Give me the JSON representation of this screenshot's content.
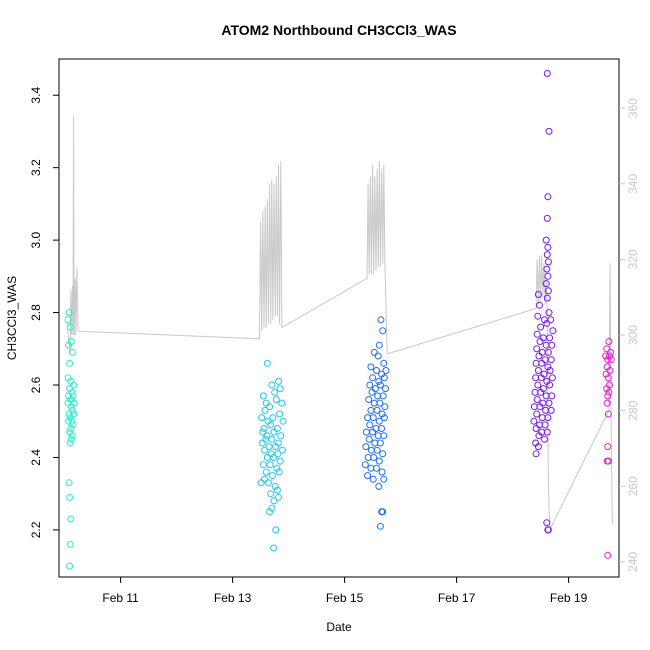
{
  "chart_data": {
    "type": "scatter",
    "title": "ATOM2 Northbound CH3CCl3_WAS",
    "xlabel": "Date",
    "ylabel": "CH3CCl3_WAS",
    "x_unit": "days in February",
    "xlim": [
      9.9,
      19.9
    ],
    "ylim": [
      2.07,
      3.5
    ],
    "y_ticks": [
      2.2,
      2.4,
      2.6,
      2.8,
      3.0,
      3.2,
      3.4
    ],
    "y_tick_labels": [
      "2.2",
      "2.4",
      "2.6",
      "2.8",
      "3.0",
      "3.2",
      "3.4"
    ],
    "x_ticks": [
      11,
      13,
      15,
      17,
      19
    ],
    "x_tick_labels": [
      "Feb 11",
      "Feb 13",
      "Feb 15",
      "Feb 17",
      "Feb 19"
    ],
    "right_axis": {
      "ylim": [
        236,
        373
      ],
      "ticks": [
        240,
        260,
        280,
        300,
        320,
        340,
        360
      ],
      "tick_labels": [
        "240",
        "260",
        "280",
        "300",
        "320",
        "340",
        "360"
      ],
      "color": "#c8c8c8"
    },
    "legend": "none",
    "grid": false,
    "series": [
      {
        "color": "#22f0c8",
        "points": [
          [
            10.08,
            2.8
          ],
          [
            10.06,
            2.78
          ],
          [
            10.1,
            2.76
          ],
          [
            10.12,
            2.72
          ],
          [
            10.07,
            2.71
          ],
          [
            10.14,
            2.69
          ],
          [
            10.09,
            2.66
          ],
          [
            10.06,
            2.62
          ],
          [
            10.11,
            2.61
          ],
          [
            10.16,
            2.6
          ],
          [
            10.09,
            2.59
          ],
          [
            10.13,
            2.58
          ],
          [
            10.07,
            2.57
          ],
          [
            10.15,
            2.57
          ],
          [
            10.11,
            2.56
          ],
          [
            10.17,
            2.55
          ],
          [
            10.06,
            2.55
          ],
          [
            10.12,
            2.54
          ],
          [
            10.14,
            2.53
          ],
          [
            10.08,
            2.52
          ],
          [
            10.16,
            2.52
          ],
          [
            10.1,
            2.51
          ],
          [
            10.13,
            2.5
          ],
          [
            10.07,
            2.5
          ],
          [
            10.15,
            2.49
          ],
          [
            10.11,
            2.48
          ],
          [
            10.09,
            2.47
          ],
          [
            10.14,
            2.46
          ],
          [
            10.12,
            2.45
          ],
          [
            10.1,
            2.44
          ],
          [
            10.08,
            2.33
          ],
          [
            10.09,
            2.29
          ],
          [
            10.11,
            2.23
          ],
          [
            10.1,
            2.16
          ],
          [
            10.09,
            2.1
          ]
        ]
      },
      {
        "color": "#1ec8f0",
        "points": [
          [
            13.62,
            2.66
          ],
          [
            13.55,
            2.57
          ],
          [
            13.7,
            2.6
          ],
          [
            13.82,
            2.61
          ],
          [
            13.6,
            2.55
          ],
          [
            13.75,
            2.58
          ],
          [
            13.85,
            2.59
          ],
          [
            13.58,
            2.53
          ],
          [
            13.66,
            2.54
          ],
          [
            13.78,
            2.56
          ],
          [
            13.88,
            2.55
          ],
          [
            13.52,
            2.51
          ],
          [
            13.63,
            2.5
          ],
          [
            13.72,
            2.51
          ],
          [
            13.84,
            2.52
          ],
          [
            13.56,
            2.48
          ],
          [
            13.68,
            2.49
          ],
          [
            13.8,
            2.48
          ],
          [
            13.9,
            2.5
          ],
          [
            13.54,
            2.47
          ],
          [
            13.61,
            2.46
          ],
          [
            13.74,
            2.47
          ],
          [
            13.86,
            2.46
          ],
          [
            13.59,
            2.45
          ],
          [
            13.7,
            2.45
          ],
          [
            13.82,
            2.44
          ],
          [
            13.53,
            2.44
          ],
          [
            13.65,
            2.43
          ],
          [
            13.77,
            2.43
          ],
          [
            13.89,
            2.42
          ],
          [
            13.57,
            2.42
          ],
          [
            13.69,
            2.41
          ],
          [
            13.81,
            2.41
          ],
          [
            13.62,
            2.4
          ],
          [
            13.73,
            2.4
          ],
          [
            13.85,
            2.39
          ],
          [
            13.55,
            2.38
          ],
          [
            13.67,
            2.38
          ],
          [
            13.79,
            2.37
          ],
          [
            13.6,
            2.36
          ],
          [
            13.71,
            2.35
          ],
          [
            13.83,
            2.36
          ],
          [
            13.57,
            2.34
          ],
          [
            13.51,
            2.33
          ],
          [
            13.64,
            2.33
          ],
          [
            13.76,
            2.32
          ],
          [
            13.8,
            2.31
          ],
          [
            13.68,
            2.3
          ],
          [
            13.82,
            2.29
          ],
          [
            13.74,
            2.28
          ],
          [
            13.7,
            2.26
          ],
          [
            13.66,
            2.25
          ],
          [
            13.77,
            2.2
          ],
          [
            13.73,
            2.15
          ]
        ]
      },
      {
        "color": "#1e6ef0",
        "points": [
          [
            15.65,
            2.78
          ],
          [
            15.68,
            2.75
          ],
          [
            15.62,
            2.71
          ],
          [
            15.53,
            2.69
          ],
          [
            15.6,
            2.68
          ],
          [
            15.7,
            2.66
          ],
          [
            15.47,
            2.65
          ],
          [
            15.57,
            2.64
          ],
          [
            15.66,
            2.63
          ],
          [
            15.74,
            2.64
          ],
          [
            15.5,
            2.62
          ],
          [
            15.61,
            2.61
          ],
          [
            15.71,
            2.62
          ],
          [
            15.45,
            2.6
          ],
          [
            15.55,
            2.59
          ],
          [
            15.64,
            2.6
          ],
          [
            15.73,
            2.59
          ],
          [
            15.49,
            2.58
          ],
          [
            15.59,
            2.57
          ],
          [
            15.69,
            2.57
          ],
          [
            15.43,
            2.56
          ],
          [
            15.53,
            2.55
          ],
          [
            15.63,
            2.55
          ],
          [
            15.72,
            2.54
          ],
          [
            15.47,
            2.53
          ],
          [
            15.58,
            2.53
          ],
          [
            15.67,
            2.52
          ],
          [
            15.41,
            2.51
          ],
          [
            15.51,
            2.51
          ],
          [
            15.62,
            2.5
          ],
          [
            15.71,
            2.51
          ],
          [
            15.45,
            2.49
          ],
          [
            15.56,
            2.48
          ],
          [
            15.66,
            2.48
          ],
          [
            15.39,
            2.47
          ],
          [
            15.5,
            2.47
          ],
          [
            15.6,
            2.46
          ],
          [
            15.7,
            2.46
          ],
          [
            15.44,
            2.45
          ],
          [
            15.54,
            2.44
          ],
          [
            15.64,
            2.44
          ],
          [
            15.38,
            2.43
          ],
          [
            15.48,
            2.42
          ],
          [
            15.58,
            2.42
          ],
          [
            15.68,
            2.41
          ],
          [
            15.42,
            2.4
          ],
          [
            15.52,
            2.4
          ],
          [
            15.62,
            2.39
          ],
          [
            15.37,
            2.38
          ],
          [
            15.47,
            2.37
          ],
          [
            15.57,
            2.37
          ],
          [
            15.67,
            2.36
          ],
          [
            15.41,
            2.35
          ],
          [
            15.51,
            2.34
          ],
          [
            15.7,
            2.34
          ],
          [
            15.61,
            2.32
          ],
          [
            15.68,
            2.25
          ],
          [
            15.66,
            2.25
          ],
          [
            15.64,
            2.21
          ]
        ]
      },
      {
        "color": "#7818e6",
        "points": [
          [
            18.62,
            3.46
          ],
          [
            18.65,
            3.3
          ],
          [
            18.63,
            3.12
          ],
          [
            18.62,
            3.06
          ],
          [
            18.6,
            3.0
          ],
          [
            18.63,
            2.98
          ],
          [
            18.62,
            2.96
          ],
          [
            18.64,
            2.94
          ],
          [
            18.61,
            2.92
          ],
          [
            18.63,
            2.9
          ],
          [
            18.6,
            2.88
          ],
          [
            18.64,
            2.86
          ],
          [
            18.46,
            2.85
          ],
          [
            18.62,
            2.84
          ],
          [
            18.48,
            2.82
          ],
          [
            18.65,
            2.8
          ],
          [
            18.45,
            2.79
          ],
          [
            18.57,
            2.78
          ],
          [
            18.68,
            2.78
          ],
          [
            18.5,
            2.76
          ],
          [
            18.61,
            2.77
          ],
          [
            18.72,
            2.75
          ],
          [
            18.44,
            2.74
          ],
          [
            18.55,
            2.73
          ],
          [
            18.66,
            2.73
          ],
          [
            18.49,
            2.72
          ],
          [
            18.6,
            2.71
          ],
          [
            18.7,
            2.71
          ],
          [
            18.43,
            2.7
          ],
          [
            18.53,
            2.69
          ],
          [
            18.64,
            2.69
          ],
          [
            18.47,
            2.68
          ],
          [
            18.58,
            2.67
          ],
          [
            18.69,
            2.67
          ],
          [
            18.42,
            2.66
          ],
          [
            18.52,
            2.66
          ],
          [
            18.63,
            2.65
          ],
          [
            18.46,
            2.64
          ],
          [
            18.56,
            2.63
          ],
          [
            18.67,
            2.64
          ],
          [
            18.41,
            2.62
          ],
          [
            18.51,
            2.62
          ],
          [
            18.61,
            2.61
          ],
          [
            18.71,
            2.62
          ],
          [
            18.45,
            2.6
          ],
          [
            18.55,
            2.59
          ],
          [
            18.66,
            2.6
          ],
          [
            18.4,
            2.58
          ],
          [
            18.5,
            2.58
          ],
          [
            18.6,
            2.57
          ],
          [
            18.7,
            2.57
          ],
          [
            18.44,
            2.56
          ],
          [
            18.54,
            2.55
          ],
          [
            18.65,
            2.55
          ],
          [
            18.39,
            2.54
          ],
          [
            18.49,
            2.54
          ],
          [
            18.59,
            2.53
          ],
          [
            18.69,
            2.53
          ],
          [
            18.43,
            2.52
          ],
          [
            18.53,
            2.51
          ],
          [
            18.63,
            2.51
          ],
          [
            18.38,
            2.5
          ],
          [
            18.48,
            2.49
          ],
          [
            18.58,
            2.49
          ],
          [
            18.42,
            2.48
          ],
          [
            18.52,
            2.47
          ],
          [
            18.62,
            2.47
          ],
          [
            18.47,
            2.46
          ],
          [
            18.57,
            2.45
          ],
          [
            18.41,
            2.44
          ],
          [
            18.46,
            2.43
          ],
          [
            18.42,
            2.41
          ],
          [
            18.61,
            2.22
          ],
          [
            18.63,
            2.2
          ],
          [
            18.64,
            2.2
          ]
        ]
      },
      {
        "color": "#e61ed2",
        "points": [
          [
            19.72,
            2.72
          ],
          [
            19.68,
            2.7
          ],
          [
            19.75,
            2.69
          ],
          [
            19.66,
            2.68
          ],
          [
            19.73,
            2.68
          ],
          [
            19.7,
            2.67
          ],
          [
            19.76,
            2.67
          ],
          [
            19.69,
            2.65
          ],
          [
            19.74,
            2.64
          ],
          [
            19.67,
            2.63
          ],
          [
            19.71,
            2.62
          ],
          [
            19.73,
            2.6
          ],
          [
            19.68,
            2.59
          ],
          [
            19.72,
            2.58
          ],
          [
            19.7,
            2.57
          ],
          [
            19.69,
            2.55
          ],
          [
            19.71,
            2.52
          ],
          [
            19.7,
            2.43
          ],
          [
            19.69,
            2.39
          ],
          [
            19.71,
            2.39
          ],
          [
            19.7,
            2.13
          ]
        ]
      }
    ],
    "line_series": {
      "color": "#c8c8c8",
      "axis": "right",
      "points": [
        [
          10.05,
          302
        ],
        [
          10.1,
          295
        ],
        [
          10.11,
          312
        ],
        [
          10.12,
          300
        ],
        [
          10.14,
          313
        ],
        [
          10.15,
          300
        ],
        [
          10.16,
          358
        ],
        [
          10.17,
          300
        ],
        [
          10.19,
          315
        ],
        [
          10.2,
          300
        ],
        [
          10.22,
          318
        ],
        [
          10.24,
          301
        ],
        [
          13.48,
          299
        ],
        [
          13.5,
          330
        ],
        [
          13.52,
          301
        ],
        [
          13.54,
          333
        ],
        [
          13.56,
          302
        ],
        [
          13.58,
          334
        ],
        [
          13.6,
          302
        ],
        [
          13.62,
          336
        ],
        [
          13.64,
          303
        ],
        [
          13.66,
          340
        ],
        [
          13.68,
          303
        ],
        [
          13.7,
          341
        ],
        [
          13.72,
          304
        ],
        [
          13.74,
          340
        ],
        [
          13.76,
          305
        ],
        [
          13.78,
          342
        ],
        [
          13.8,
          305
        ],
        [
          13.82,
          345
        ],
        [
          13.84,
          303
        ],
        [
          13.86,
          346
        ],
        [
          13.88,
          302
        ],
        [
          15.4,
          315
        ],
        [
          15.42,
          340
        ],
        [
          15.44,
          316
        ],
        [
          15.46,
          342
        ],
        [
          15.48,
          316
        ],
        [
          15.5,
          345
        ],
        [
          15.52,
          316
        ],
        [
          15.54,
          342
        ],
        [
          15.56,
          317
        ],
        [
          15.58,
          344
        ],
        [
          15.6,
          318
        ],
        [
          15.62,
          346
        ],
        [
          15.64,
          318
        ],
        [
          15.66,
          344
        ],
        [
          15.68,
          319
        ],
        [
          15.7,
          345
        ],
        [
          15.72,
          319
        ],
        [
          15.76,
          295
        ],
        [
          18.42,
          307
        ],
        [
          18.44,
          320
        ],
        [
          18.46,
          308
        ],
        [
          18.48,
          321
        ],
        [
          18.5,
          309
        ],
        [
          18.52,
          321
        ],
        [
          18.54,
          310
        ],
        [
          18.56,
          319
        ],
        [
          18.58,
          308
        ],
        [
          18.6,
          315
        ],
        [
          18.62,
          305
        ],
        [
          18.64,
          260
        ],
        [
          18.66,
          250
        ],
        [
          18.68,
          249
        ],
        [
          19.72,
          280
        ],
        [
          19.74,
          319
        ],
        [
          19.76,
          275
        ],
        [
          19.78,
          250
        ]
      ]
    }
  }
}
